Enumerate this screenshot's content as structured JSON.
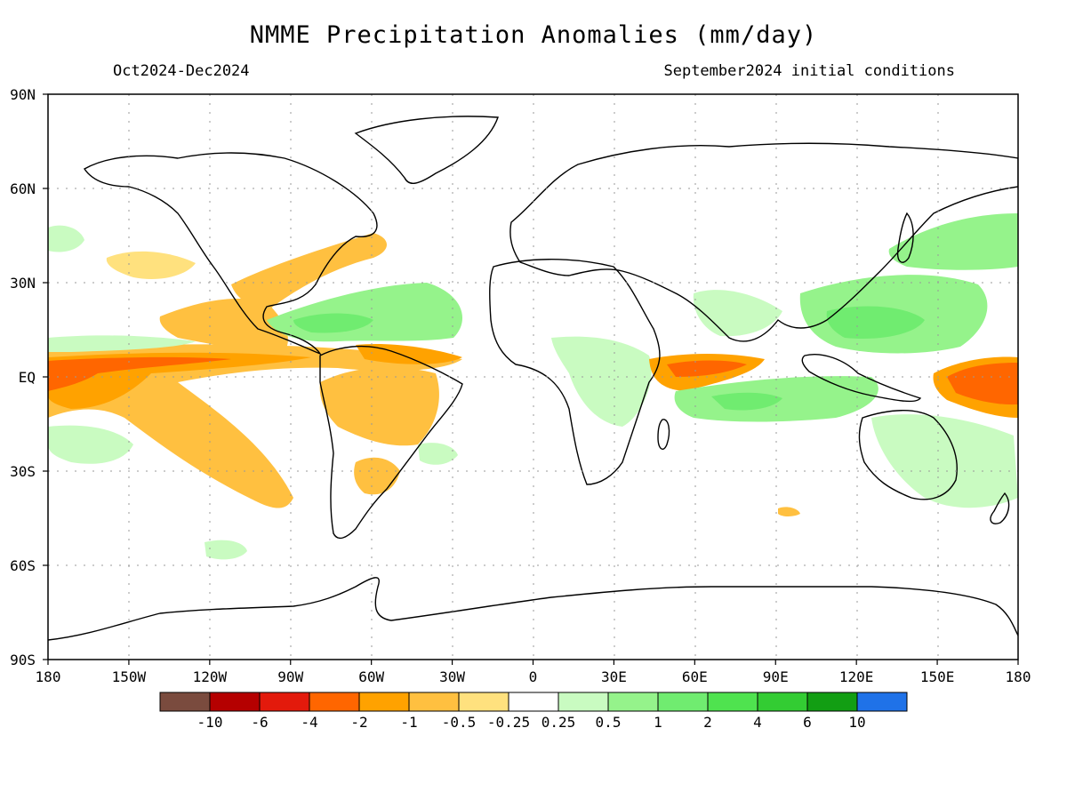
{
  "title": "NMME Precipitation Anomalies (mm/day)",
  "period": "Oct2024-Dec2024",
  "init": "September2024 initial conditions",
  "lat_ticks": [
    "90N",
    "60N",
    "30N",
    "EQ",
    "30S",
    "60S",
    "90S"
  ],
  "lon_ticks": [
    "180",
    "150W",
    "120W",
    "90W",
    "60W",
    "30W",
    "0",
    "30E",
    "60E",
    "90E",
    "120E",
    "150E",
    "180"
  ],
  "colorbar": {
    "colors": [
      "#7a4b3e",
      "#b50000",
      "#e31a0c",
      "#ff6600",
      "#ffa200",
      "#ffc040",
      "#ffe17e",
      "#ffffff",
      "#c9fbc1",
      "#95f38b",
      "#70ec70",
      "#4fe34f",
      "#33cc33",
      "#129e13",
      "#1f72e8"
    ],
    "labels": [
      "-10",
      "-6",
      "-4",
      "-2",
      "-1",
      "-0.5",
      "-0.25",
      "0.25",
      "0.5",
      "1",
      "2",
      "4",
      "6",
      "10"
    ]
  },
  "colors": {
    "ocean": "#ffffff",
    "coast": "#000000",
    "grid": "#999999"
  }
}
